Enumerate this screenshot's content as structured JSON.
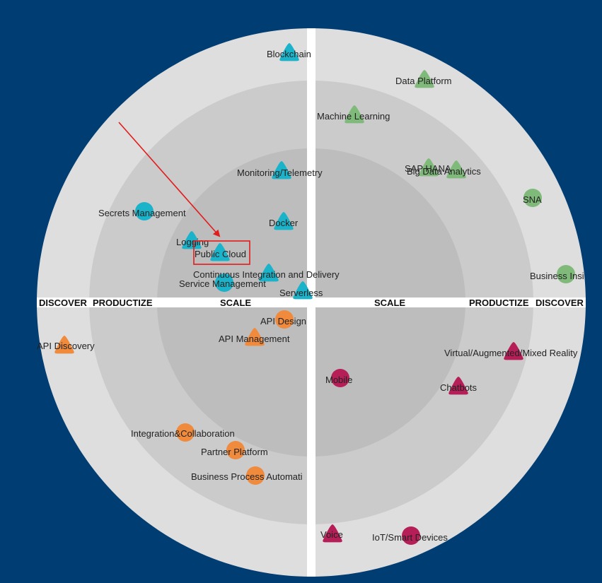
{
  "axis_labels": {
    "left_discover": "DISCOVER",
    "left_productize": "PRODUCTIZE",
    "left_scale": "SCALE",
    "right_scale": "SCALE",
    "right_productize": "PRODUCTIZE",
    "right_discover": "DISCOVER"
  },
  "colors": {
    "background": "#003d73",
    "ring_outer": "#dedede",
    "ring_middle": "#cbcbcb",
    "ring_inner": "#bdbdbd",
    "teal": "#1bb3c9",
    "green": "#7fba7a",
    "orange": "#f08a3c",
    "crimson": "#b51e57",
    "highlight": "#e21c1c"
  },
  "items": [
    {
      "label": "Blockchain",
      "shape": "triangle",
      "color": "teal"
    },
    {
      "label": "Monitoring/Telemetry",
      "shape": "triangle",
      "color": "teal"
    },
    {
      "label": "Secrets Management",
      "shape": "circle",
      "color": "teal"
    },
    {
      "label": "Docker",
      "shape": "triangle",
      "color": "teal"
    },
    {
      "label": "Logging",
      "shape": "triangle",
      "color": "teal"
    },
    {
      "label": "Public Cloud",
      "shape": "triangle",
      "color": "teal"
    },
    {
      "label": "Continuous Integration and Delivery",
      "shape": "triangle",
      "color": "teal"
    },
    {
      "label": "Service Management",
      "shape": "circle",
      "color": "teal"
    },
    {
      "label": "Serverless",
      "shape": "triangle",
      "color": "teal"
    },
    {
      "label": "Data Platform",
      "shape": "triangle",
      "color": "green"
    },
    {
      "label": "Machine Learning",
      "shape": "triangle",
      "color": "green"
    },
    {
      "label": "SAP HANA",
      "shape": "triangle",
      "color": "green"
    },
    {
      "label": "Big Data Analytics",
      "shape": "triangle",
      "color": "green"
    },
    {
      "label": "SNA",
      "shape": "circle",
      "color": "green"
    },
    {
      "label": "Business Insi",
      "shape": "circle",
      "color": "green"
    },
    {
      "label": "API Design",
      "shape": "circle",
      "color": "orange"
    },
    {
      "label": "API Management",
      "shape": "triangle",
      "color": "orange"
    },
    {
      "label": "API Discovery",
      "shape": "triangle",
      "color": "orange"
    },
    {
      "label": "Integration&Collaboration",
      "shape": "circle",
      "color": "orange"
    },
    {
      "label": "Partner Platform",
      "shape": "circle",
      "color": "orange"
    },
    {
      "label": "Business Process Automati",
      "shape": "circle",
      "color": "orange"
    },
    {
      "label": "Virtual/Augmented/Mixed Reality",
      "shape": "triangle",
      "color": "crimson"
    },
    {
      "label": "Chatbots",
      "shape": "triangle",
      "color": "crimson"
    },
    {
      "label": "Mobile",
      "shape": "circle",
      "color": "crimson"
    },
    {
      "label": "Voice",
      "shape": "triangle",
      "color": "crimson"
    },
    {
      "label": "IoT/Smart Devices",
      "shape": "circle",
      "color": "crimson"
    }
  ]
}
